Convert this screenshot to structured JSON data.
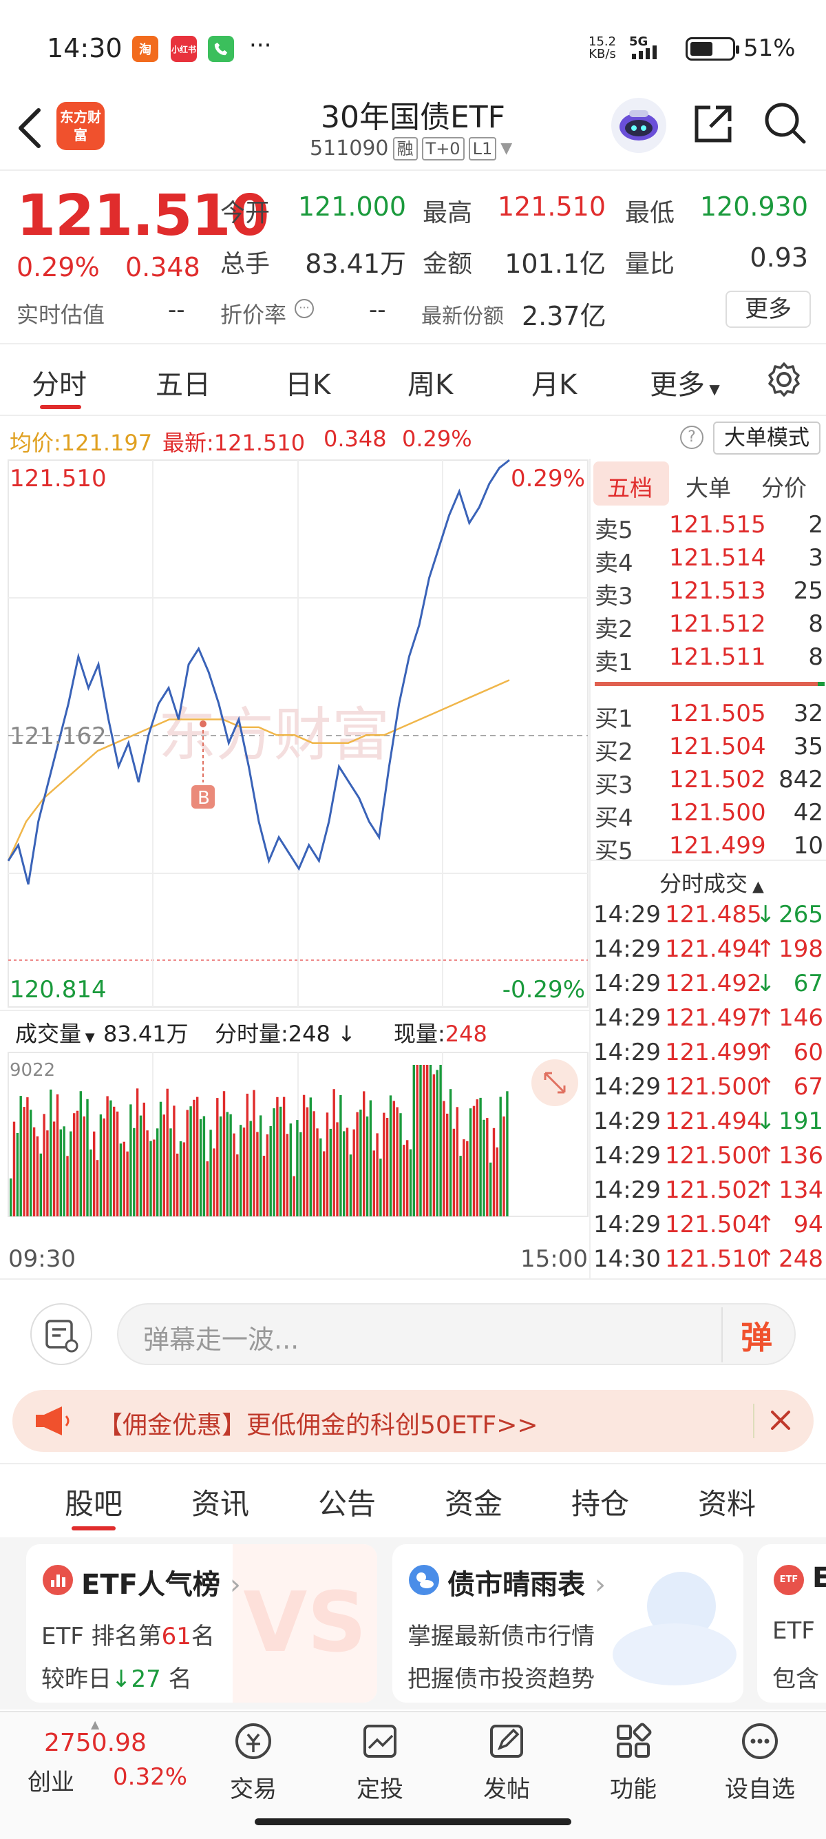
{
  "status": {
    "time": "14:30",
    "app_icons": [
      "淘",
      "小红书"
    ],
    "more": "···",
    "net_speed_top": "15.2",
    "net_speed_bottom": "KB/s",
    "network": "5G",
    "battery": "51%"
  },
  "header": {
    "logo_text": "东方财富",
    "title": "30年国债ETF",
    "code": "511090",
    "tags": [
      "融",
      "T+0",
      "L1"
    ]
  },
  "quote": {
    "last_price": "121.510",
    "change_pct": "0.29%",
    "change": "0.348",
    "open_label": "今开",
    "open": "121.000",
    "high_label": "最高",
    "high": "121.510",
    "low_label": "最低",
    "low": "120.930",
    "volume_label": "总手",
    "volume": "83.41万",
    "amount_label": "金额",
    "amount": "101.1亿",
    "vol_ratio_label": "量比",
    "vol_ratio": "0.93",
    "iopv_label": "实时估值",
    "iopv": "--",
    "discount_label": "折价率",
    "discount": "--",
    "shares_label": "最新份额",
    "shares": "2.37亿",
    "more_label": "更多"
  },
  "chart_tabs": [
    "分时",
    "五日",
    "日K",
    "周K",
    "月K",
    "更多"
  ],
  "avg_bar": {
    "avg_label": "均价:",
    "avg": "121.197",
    "latest_label": "最新:",
    "latest": "121.510",
    "change": "0.348",
    "change_pct": "0.29%",
    "mode_button": "大单模式"
  },
  "price_chart": {
    "top_price": "121.510",
    "top_pct": "0.29%",
    "mid_price": "121.162",
    "bottom_price": "120.814",
    "bottom_pct": "-0.29%",
    "watermark": "东方财富",
    "buy_marker": "B"
  },
  "volume_header": {
    "label": "成交量",
    "total": "83.41万",
    "minute_label": "分时量:",
    "minute": "248",
    "current_label": "现量:",
    "current": "248"
  },
  "volume_chart": {
    "max_label": "9022",
    "start_time": "09:30",
    "end_time": "15:00"
  },
  "order_book": {
    "tabs": [
      "五档",
      "大单",
      "分价"
    ],
    "asks": [
      {
        "label": "卖5",
        "price": "121.515",
        "qty": "2"
      },
      {
        "label": "卖4",
        "price": "121.514",
        "qty": "3"
      },
      {
        "label": "卖3",
        "price": "121.513",
        "qty": "25"
      },
      {
        "label": "卖2",
        "price": "121.512",
        "qty": "8"
      },
      {
        "label": "卖1",
        "price": "121.511",
        "qty": "8"
      }
    ],
    "bids": [
      {
        "label": "买1",
        "price": "121.505",
        "qty": "32"
      },
      {
        "label": "买2",
        "price": "121.504",
        "qty": "35"
      },
      {
        "label": "买3",
        "price": "121.502",
        "qty": "842"
      },
      {
        "label": "买4",
        "price": "121.500",
        "qty": "42"
      },
      {
        "label": "买5",
        "price": "121.499",
        "qty": "10"
      }
    ],
    "trades_title": "分时成交",
    "trades": [
      {
        "time": "14:29",
        "price": "121.485",
        "dir": "↓",
        "qty": "265"
      },
      {
        "time": "14:29",
        "price": "121.494",
        "dir": "↑",
        "qty": "198"
      },
      {
        "time": "14:29",
        "price": "121.492",
        "dir": "↓",
        "qty": "67"
      },
      {
        "time": "14:29",
        "price": "121.497",
        "dir": "↑",
        "qty": "146"
      },
      {
        "time": "14:29",
        "price": "121.499",
        "dir": "↑",
        "qty": "60"
      },
      {
        "time": "14:29",
        "price": "121.500",
        "dir": "↑",
        "qty": "67"
      },
      {
        "time": "14:29",
        "price": "121.494",
        "dir": "↓",
        "qty": "191"
      },
      {
        "time": "14:29",
        "price": "121.500",
        "dir": "↑",
        "qty": "136"
      },
      {
        "time": "14:29",
        "price": "121.502",
        "dir": "↑",
        "qty": "134"
      },
      {
        "time": "14:29",
        "price": "121.504",
        "dir": "↑",
        "qty": "94"
      },
      {
        "time": "14:30",
        "price": "121.510",
        "dir": "↑",
        "qty": "248"
      }
    ]
  },
  "danmu": {
    "placeholder": "弹幕走一波...",
    "send_label": "弹"
  },
  "promo": {
    "text": "【佣金优惠】更低佣金的科创50ETF>>"
  },
  "bottom_tabs": [
    "股吧",
    "资讯",
    "公告",
    "资金",
    "持仓",
    "资料"
  ],
  "cards": [
    {
      "title": "ETF人气榜",
      "line1_prefix": "ETF 排名第",
      "line1_num": "61",
      "line1_suffix": "名",
      "line2_prefix": "较昨日",
      "line2_num": "27",
      "line2_suffix": "名"
    },
    {
      "title": "债市晴雨表",
      "line1": "掌握最新债市行情",
      "line2": "把握债市投资趋势"
    },
    {
      "title": "E",
      "line1": "ETF",
      "line2": "包含"
    }
  ],
  "bottom_nav": {
    "index_value": "2750.98",
    "index_name": "创业",
    "index_pct": "0.32%",
    "items": [
      "交易",
      "定投",
      "发帖",
      "功能",
      "设自选"
    ]
  },
  "colors": {
    "up": "#e02c2c",
    "down": "#1a9a3c",
    "price_line": "#3a63b8",
    "avg_line": "#f0b64a",
    "accent": "#f0512d"
  }
}
